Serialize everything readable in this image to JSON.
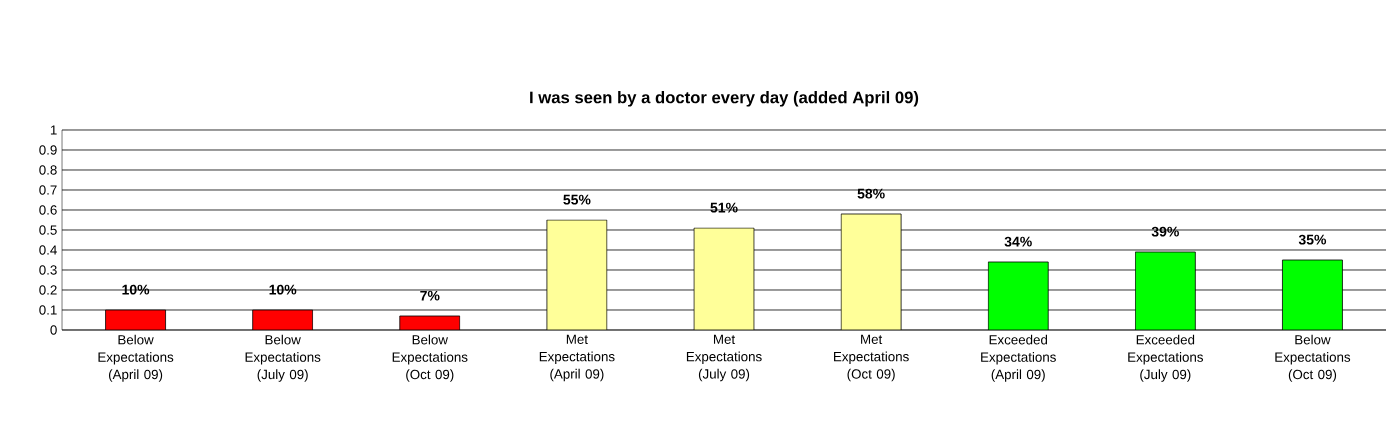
{
  "chart_data": {
    "type": "bar",
    "title": "I was seen by a doctor every day (added April 09)",
    "categories": [
      "Below Expectations (April 09)",
      "Below Expectations (July 09)",
      "Below Expectations (Oct 09)",
      "Met Expectations (April 09)",
      "Met Expectations (July 09)",
      "Met Expectations (Oct 09)",
      "Exceeded Expectations (April 09)",
      "Exceeded Expectations (July 09)",
      "Below Expectations (Oct 09)"
    ],
    "values": [
      0.1,
      0.1,
      0.07,
      0.55,
      0.51,
      0.58,
      0.34,
      0.39,
      0.35
    ],
    "value_labels": [
      "10%",
      "10%",
      "7%",
      "55%",
      "51%",
      "58%",
      "34%",
      "39%",
      "35%"
    ],
    "colors": [
      "#ff0000",
      "#ff0000",
      "#ff0000",
      "#ffff99",
      "#ffff99",
      "#ffff99",
      "#00ff00",
      "#00ff00",
      "#00ff00"
    ],
    "ylim": [
      0,
      1
    ],
    "yticks": [
      0,
      0.1,
      0.2,
      0.3,
      0.4,
      0.5,
      0.6,
      0.7,
      0.8,
      0.9,
      1
    ],
    "grid": "y"
  }
}
